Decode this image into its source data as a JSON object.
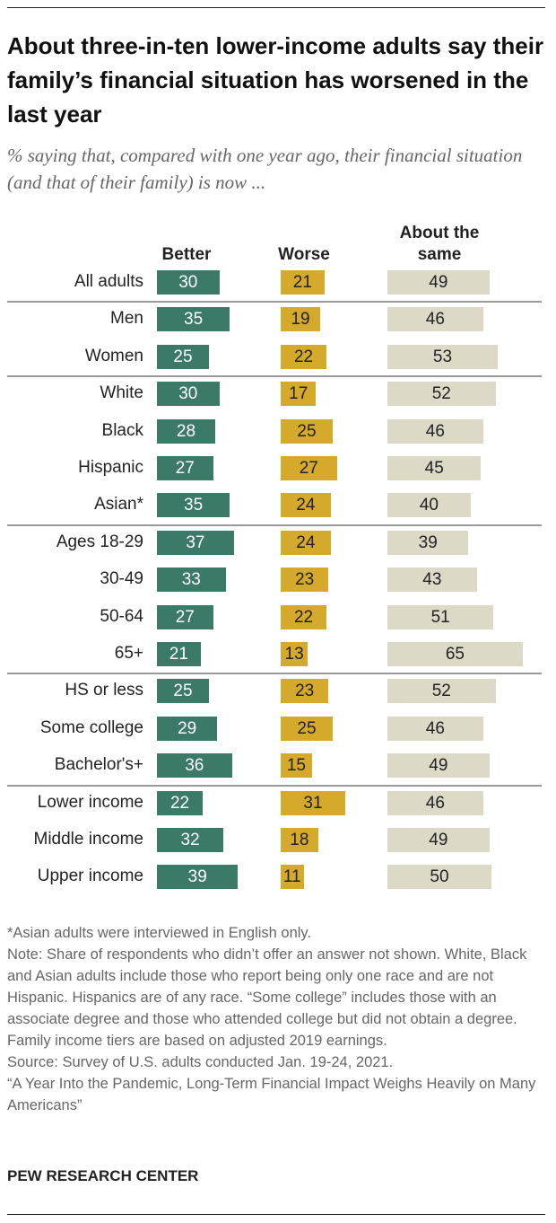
{
  "chart_data": {
    "type": "bar",
    "title": "About three-in-ten lower-income adults say their family’s financial situation has worsened in the last year",
    "subtitle": "% saying that, compared with one year ago, their financial situation (and that of their family) is now ...",
    "categories": [
      "All adults",
      "Men",
      "Women",
      "White",
      "Black",
      "Hispanic",
      "Asian*",
      "Ages 18-29",
      "30-49",
      "50-64",
      "65+",
      "HS or less",
      "Some college",
      "Bachelor's+",
      "Lower income",
      "Middle income",
      "Upper income"
    ],
    "series": [
      {
        "name": "Better",
        "color": "#3b7a66",
        "values": [
          30,
          35,
          25,
          30,
          28,
          27,
          35,
          37,
          33,
          27,
          21,
          25,
          29,
          36,
          22,
          32,
          39
        ]
      },
      {
        "name": "Worse",
        "color": "#d5a92c",
        "values": [
          21,
          19,
          22,
          17,
          25,
          27,
          24,
          24,
          23,
          22,
          13,
          23,
          25,
          15,
          31,
          18,
          11
        ]
      },
      {
        "name": "About the same",
        "color": "#dcd9c7",
        "values": [
          49,
          46,
          53,
          52,
          46,
          45,
          40,
          39,
          43,
          51,
          65,
          52,
          46,
          49,
          46,
          49,
          50
        ]
      }
    ],
    "notes": [
      "*Asian adults were interviewed in English only.",
      "Note: Share of respondents who didn’t offer an answer not shown. White, Black and Asian adults include those who report being only one race and are not Hispanic. Hispanics are of any race. “Some college” includes those with an associate degree and those who attended college but did not obtain a degree. Family income tiers are based on adjusted 2019 earnings.",
      "Source: Survey of U.S. adults conducted Jan. 19-24, 2021.",
      "“A Year Into the Pandemic, Long-Term Financial Impact Weighs Heavily on Many Americans”"
    ],
    "source_org": "PEW RESEARCH CENTER"
  }
}
